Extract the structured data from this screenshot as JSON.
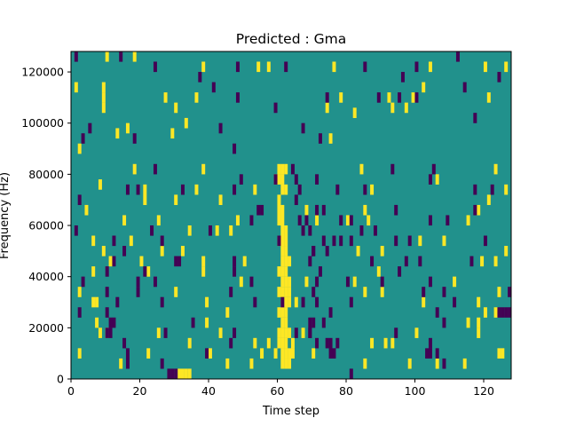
{
  "chart_data": {
    "type": "heatmap",
    "title": "Predicted : Gma",
    "xlabel": "Time step",
    "ylabel": "Frequency (Hz)",
    "xlim": [
      0,
      128
    ],
    "ylim": [
      0,
      128000
    ],
    "x_ticks": [
      0,
      20,
      40,
      60,
      80,
      100,
      120
    ],
    "y_ticks": [
      0,
      20000,
      40000,
      60000,
      80000,
      100000,
      120000
    ],
    "grid": false,
    "legend": "none",
    "colormap": {
      "low": "#440154",
      "mid": "#21918c",
      "high": "#fde725"
    },
    "background_value": "mid",
    "cells": {
      "high": [
        [
          10,
          126000
        ],
        [
          18,
          126000
        ],
        [
          38,
          122000
        ],
        [
          54,
          122000
        ],
        [
          57,
          122000
        ],
        [
          76,
          122000
        ],
        [
          104,
          122000
        ],
        [
          120,
          122000
        ],
        [
          126,
          122000
        ],
        [
          1,
          114000
        ],
        [
          9,
          114000
        ],
        [
          36,
          110000
        ],
        [
          27,
          110000
        ],
        [
          99,
          110000
        ],
        [
          78,
          110000
        ],
        [
          92,
          110000
        ],
        [
          121,
          110000
        ],
        [
          102,
          114000
        ],
        [
          9,
          110000
        ],
        [
          9,
          106000
        ],
        [
          74,
          106000
        ],
        [
          93,
          106000
        ],
        [
          30,
          106000
        ],
        [
          97,
          106000
        ],
        [
          82,
          104000
        ],
        [
          33,
          100000
        ],
        [
          16,
          98000
        ],
        [
          75,
          94000
        ],
        [
          29,
          96000
        ],
        [
          13,
          96000
        ],
        [
          2,
          90000
        ],
        [
          18,
          82000
        ],
        [
          38,
          82000
        ],
        [
          84,
          82000
        ],
        [
          8,
          76000
        ],
        [
          21,
          74000
        ],
        [
          21,
          70000
        ],
        [
          123,
          82000
        ],
        [
          106,
          78000
        ],
        [
          126,
          74000
        ],
        [
          36,
          74000
        ],
        [
          121,
          70000
        ],
        [
          30,
          70000
        ],
        [
          43,
          70000
        ],
        [
          87,
          74000
        ],
        [
          53,
          74000
        ],
        [
          4,
          66000
        ],
        [
          68,
          66000
        ],
        [
          118,
          66000
        ],
        [
          115,
          62000
        ],
        [
          15,
          62000
        ],
        [
          71,
          62000
        ],
        [
          85,
          66000
        ],
        [
          80,
          62000
        ],
        [
          46,
          58000
        ],
        [
          86,
          62000
        ],
        [
          34,
          58000
        ],
        [
          25,
          62000
        ],
        [
          48,
          62000
        ],
        [
          6,
          54000
        ],
        [
          17,
          54000
        ],
        [
          108,
          54000
        ],
        [
          83,
          50000
        ],
        [
          101,
          54000
        ],
        [
          126,
          50000
        ],
        [
          90,
          50000
        ],
        [
          9,
          50000
        ],
        [
          32,
          50000
        ],
        [
          42,
          58000
        ],
        [
          26,
          50000
        ],
        [
          20,
          46000
        ],
        [
          50,
          46000
        ],
        [
          22,
          42000
        ],
        [
          38,
          46000
        ],
        [
          38,
          42000
        ],
        [
          11,
          46000
        ],
        [
          6,
          42000
        ],
        [
          89,
          42000
        ],
        [
          119,
          46000
        ],
        [
          123,
          46000
        ],
        [
          2,
          34000
        ],
        [
          49,
          38000
        ],
        [
          68,
          38000
        ],
        [
          82,
          38000
        ],
        [
          90,
          34000
        ],
        [
          111,
          38000
        ],
        [
          118,
          30000
        ],
        [
          124,
          34000
        ],
        [
          30,
          34000
        ],
        [
          39,
          30000
        ],
        [
          85,
          34000
        ],
        [
          102,
          30000
        ],
        [
          6,
          30000
        ],
        [
          7,
          30000
        ],
        [
          65,
          30000
        ],
        [
          45,
          26000
        ],
        [
          120,
          26000
        ],
        [
          123,
          26000
        ],
        [
          115,
          22000
        ],
        [
          118,
          22000
        ],
        [
          39,
          22000
        ],
        [
          7,
          22000
        ],
        [
          25,
          18000
        ],
        [
          43,
          18000
        ],
        [
          118,
          18000
        ],
        [
          10,
          18000
        ],
        [
          8,
          18000
        ],
        [
          100,
          18000
        ],
        [
          34,
          14000
        ],
        [
          57,
          14000
        ],
        [
          87,
          14000
        ],
        [
          91,
          14000
        ],
        [
          93,
          14000
        ],
        [
          53,
          14000
        ],
        [
          2,
          10000
        ],
        [
          22,
          10000
        ],
        [
          40,
          10000
        ],
        [
          55,
          10000
        ],
        [
          124,
          10000
        ],
        [
          125,
          10000
        ],
        [
          45,
          6000
        ],
        [
          52,
          6000
        ],
        [
          85,
          6000
        ],
        [
          98,
          6000
        ],
        [
          106,
          6000
        ],
        [
          114,
          6000
        ],
        [
          61,
          6000
        ],
        [
          14,
          6000
        ],
        [
          59,
          10000
        ],
        [
          64,
          14000
        ],
        [
          70,
          10000
        ],
        [
          67,
          18000
        ],
        [
          31,
          2000
        ],
        [
          32,
          2000
        ],
        [
          33,
          2000
        ],
        [
          34,
          2000
        ],
        [
          60,
          82000
        ],
        [
          61,
          82000
        ],
        [
          62,
          82000
        ],
        [
          60,
          78000
        ],
        [
          61,
          78000
        ],
        [
          59,
          78000
        ],
        [
          61,
          74000
        ],
        [
          62,
          74000
        ],
        [
          60,
          70000
        ],
        [
          60,
          66000
        ],
        [
          61,
          66000
        ],
        [
          60,
          62000
        ],
        [
          61,
          62000
        ],
        [
          61,
          58000
        ],
        [
          62,
          58000
        ],
        [
          60,
          54000
        ],
        [
          61,
          54000
        ],
        [
          62,
          54000
        ],
        [
          61,
          50000
        ],
        [
          62,
          50000
        ],
        [
          61,
          46000
        ],
        [
          62,
          46000
        ],
        [
          63,
          46000
        ],
        [
          60,
          42000
        ],
        [
          61,
          42000
        ],
        [
          62,
          42000
        ],
        [
          61,
          38000
        ],
        [
          62,
          38000
        ],
        [
          63,
          38000
        ],
        [
          60,
          34000
        ],
        [
          61,
          34000
        ],
        [
          62,
          34000
        ],
        [
          63,
          34000
        ],
        [
          61,
          30000
        ],
        [
          62,
          30000
        ],
        [
          63,
          30000
        ],
        [
          60,
          26000
        ],
        [
          61,
          26000
        ],
        [
          62,
          26000
        ],
        [
          61,
          22000
        ],
        [
          62,
          22000
        ],
        [
          60,
          18000
        ],
        [
          61,
          18000
        ],
        [
          62,
          18000
        ],
        [
          63,
          18000
        ],
        [
          60,
          14000
        ],
        [
          61,
          14000
        ],
        [
          62,
          14000
        ],
        [
          61,
          10000
        ],
        [
          62,
          10000
        ],
        [
          63,
          10000
        ],
        [
          64,
          10000
        ],
        [
          62,
          6000
        ],
        [
          63,
          6000
        ]
      ],
      "low": [
        [
          1,
          126000
        ],
        [
          14,
          126000
        ],
        [
          24,
          122000
        ],
        [
          48,
          122000
        ],
        [
          62,
          122000
        ],
        [
          100,
          122000
        ],
        [
          112,
          126000
        ],
        [
          85,
          122000
        ],
        [
          96,
          118000
        ],
        [
          124,
          118000
        ],
        [
          37,
          118000
        ],
        [
          41,
          114000
        ],
        [
          100,
          110000
        ],
        [
          48,
          110000
        ],
        [
          59,
          106000
        ],
        [
          74,
          110000
        ],
        [
          89,
          110000
        ],
        [
          95,
          110000
        ],
        [
          114,
          114000
        ],
        [
          117,
          102000
        ],
        [
          5,
          98000
        ],
        [
          18,
          94000
        ],
        [
          43,
          98000
        ],
        [
          67,
          98000
        ],
        [
          72,
          94000
        ],
        [
          3,
          94000
        ],
        [
          47,
          90000
        ],
        [
          93,
          82000
        ],
        [
          105,
          82000
        ],
        [
          24,
          82000
        ],
        [
          49,
          78000
        ],
        [
          59,
          78000
        ],
        [
          71,
          78000
        ],
        [
          104,
          78000
        ],
        [
          117,
          74000
        ],
        [
          77,
          74000
        ],
        [
          122,
          74000
        ],
        [
          2,
          70000
        ],
        [
          16,
          74000
        ],
        [
          19,
          74000
        ],
        [
          32,
          74000
        ],
        [
          47,
          74000
        ],
        [
          85,
          74000
        ],
        [
          65,
          70000
        ],
        [
          55,
          66000
        ],
        [
          54,
          66000
        ],
        [
          71,
          66000
        ],
        [
          73,
          66000
        ],
        [
          94,
          66000
        ],
        [
          117,
          66000
        ],
        [
          52,
          62000
        ],
        [
          66,
          62000
        ],
        [
          78,
          62000
        ],
        [
          81,
          62000
        ],
        [
          109,
          62000
        ],
        [
          104,
          62000
        ],
        [
          40,
          58000
        ],
        [
          1,
          58000
        ],
        [
          23,
          58000
        ],
        [
          67,
          58000
        ],
        [
          84,
          58000
        ],
        [
          88,
          58000
        ],
        [
          76,
          54000
        ],
        [
          78,
          54000
        ],
        [
          73,
          54000
        ],
        [
          60,
          54000
        ],
        [
          12,
          54000
        ],
        [
          81,
          54000
        ],
        [
          94,
          54000
        ],
        [
          98,
          54000
        ],
        [
          120,
          54000
        ],
        [
          26,
          54000
        ],
        [
          15,
          50000
        ],
        [
          70,
          50000
        ],
        [
          74,
          50000
        ],
        [
          47,
          46000
        ],
        [
          87,
          46000
        ],
        [
          97,
          46000
        ],
        [
          101,
          46000
        ],
        [
          116,
          46000
        ],
        [
          12,
          46000
        ],
        [
          30,
          46000
        ],
        [
          31,
          46000
        ],
        [
          69,
          46000
        ],
        [
          47,
          42000
        ],
        [
          95,
          42000
        ],
        [
          10,
          42000
        ],
        [
          21,
          42000
        ],
        [
          3,
          38000
        ],
        [
          19,
          38000
        ],
        [
          24,
          38000
        ],
        [
          52,
          38000
        ],
        [
          71,
          38000
        ],
        [
          80,
          38000
        ],
        [
          90,
          38000
        ],
        [
          104,
          38000
        ],
        [
          102,
          34000
        ],
        [
          108,
          34000
        ],
        [
          10,
          34000
        ],
        [
          19,
          34000
        ],
        [
          46,
          34000
        ],
        [
          127,
          34000
        ],
        [
          13,
          30000
        ],
        [
          26,
          30000
        ],
        [
          53,
          30000
        ],
        [
          81,
          30000
        ],
        [
          111,
          30000
        ],
        [
          67,
          30000
        ],
        [
          2,
          26000
        ],
        [
          10,
          26000
        ],
        [
          75,
          26000
        ],
        [
          106,
          26000
        ],
        [
          124,
          26000
        ],
        [
          125,
          26000
        ],
        [
          126,
          26000
        ],
        [
          127,
          26000
        ],
        [
          11,
          22000
        ],
        [
          12,
          22000
        ],
        [
          35,
          22000
        ],
        [
          69,
          22000
        ],
        [
          108,
          22000
        ],
        [
          73,
          22000
        ],
        [
          10,
          18000
        ],
        [
          11,
          18000
        ],
        [
          27,
          18000
        ],
        [
          47,
          18000
        ],
        [
          65,
          18000
        ],
        [
          69,
          18000
        ],
        [
          94,
          18000
        ],
        [
          15,
          14000
        ],
        [
          46,
          14000
        ],
        [
          75,
          14000
        ],
        [
          74,
          14000
        ],
        [
          77,
          14000
        ],
        [
          104,
          14000
        ],
        [
          71,
          14000
        ],
        [
          106,
          10000
        ],
        [
          103,
          10000
        ],
        [
          104,
          10000
        ],
        [
          75,
          10000
        ],
        [
          76,
          10000
        ],
        [
          16,
          10000
        ],
        [
          39,
          10000
        ],
        [
          26,
          6000
        ],
        [
          108,
          6000
        ],
        [
          16,
          6000
        ],
        [
          28,
          2000
        ],
        [
          29,
          2000
        ],
        [
          30,
          2000
        ],
        [
          81,
          2000
        ],
        [
          61,
          30000
        ],
        [
          64,
          82000
        ],
        [
          65,
          78000
        ],
        [
          66,
          74000
        ],
        [
          68,
          62000
        ],
        [
          69,
          58000
        ],
        [
          70,
          50000
        ],
        [
          72,
          42000
        ],
        [
          70,
          34000
        ],
        [
          71,
          30000
        ],
        [
          70,
          22000
        ],
        [
          69,
          18000
        ]
      ]
    }
  }
}
